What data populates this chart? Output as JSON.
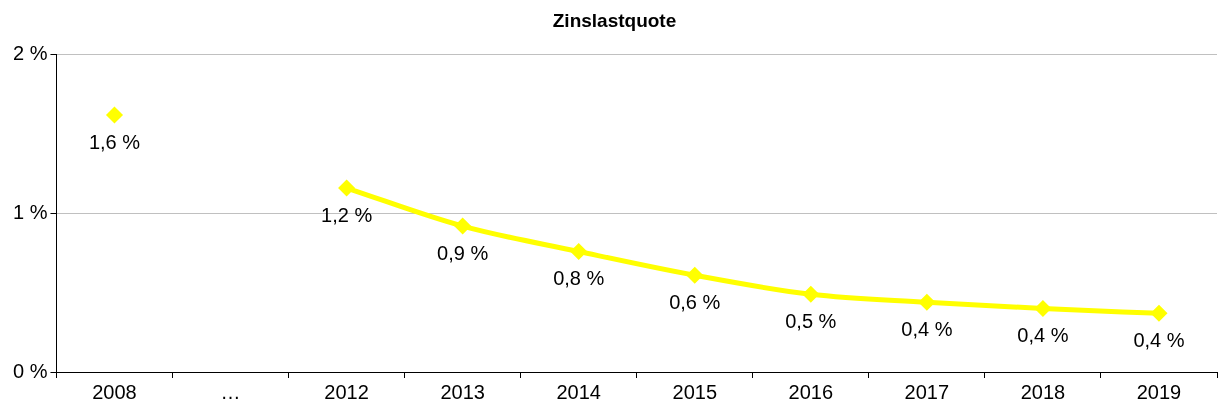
{
  "chart_data": {
    "type": "line",
    "title": "Zinslastquote",
    "categories": [
      "2008",
      "…",
      "2012",
      "2013",
      "2014",
      "2015",
      "2016",
      "2017",
      "2018",
      "2019"
    ],
    "series": [
      {
        "color": "#ffff00",
        "values": [
          1.62,
          null,
          1.16,
          0.92,
          0.76,
          0.61,
          0.49,
          0.44,
          0.4,
          0.37
        ],
        "value_labels": [
          "1,6 %",
          null,
          "1,2 %",
          "0,9 %",
          "0,8 %",
          "0,6 %",
          "0,5 %",
          "0,4 %",
          "0,4 %",
          "0,4 %"
        ]
      }
    ],
    "ylim": [
      0,
      2
    ],
    "yticks": [
      {
        "value": 0,
        "label": "0 %"
      },
      {
        "value": 1,
        "label": "1 %"
      },
      {
        "value": 2,
        "label": "2 %"
      }
    ],
    "grid": "y",
    "legend": false,
    "marker": "diamond",
    "line_style": "solid"
  }
}
